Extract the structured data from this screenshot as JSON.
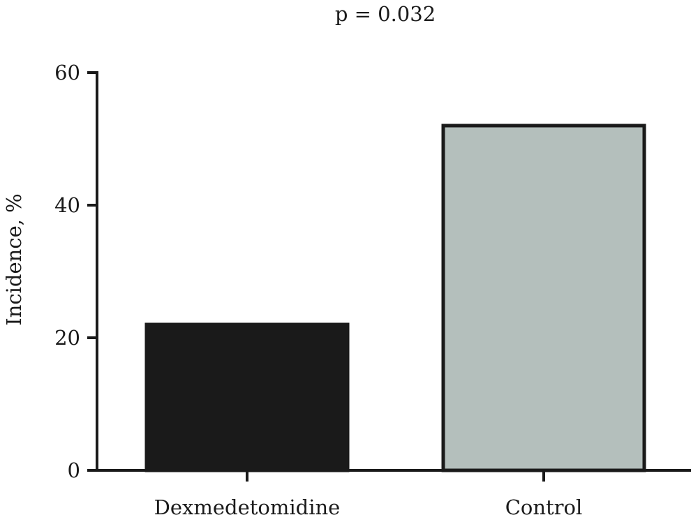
{
  "chart_data": {
    "type": "bar",
    "title": "p = 0.032",
    "xlabel": "",
    "ylabel": "Incidence, %",
    "categories": [
      "Dexmedetomidine",
      "Control"
    ],
    "values": [
      22,
      52
    ],
    "ylim": [
      0,
      60
    ],
    "yticks": [
      0,
      20,
      40,
      60
    ],
    "ytick_labels": [
      "0",
      "20",
      "40",
      "60"
    ],
    "bar_colors": [
      "#1a1a1a",
      "#b4bfbc"
    ],
    "grid": false,
    "legend": "none"
  }
}
